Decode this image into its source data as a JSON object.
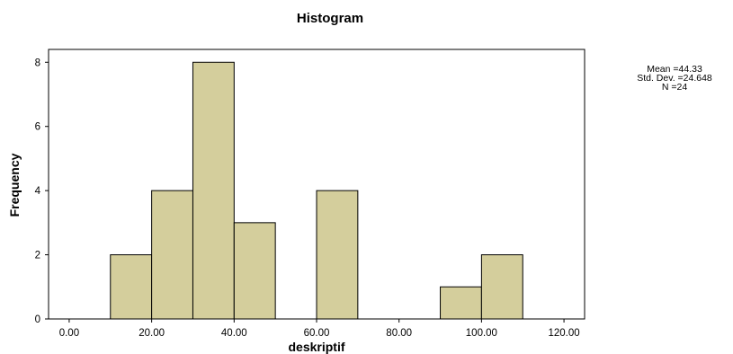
{
  "chart_data": {
    "type": "bar",
    "title": "Histogram",
    "xlabel": "deskriptif",
    "ylabel": "Frequency",
    "xlim": [
      -5,
      125
    ],
    "ylim": [
      0,
      8.4
    ],
    "x_ticks": [
      "0.00",
      "20.00",
      "40.00",
      "60.00",
      "80.00",
      "100.00",
      "120.00"
    ],
    "x_tick_values": [
      0,
      20,
      40,
      60,
      80,
      100,
      120
    ],
    "y_ticks": [
      "0",
      "2",
      "4",
      "6",
      "8"
    ],
    "y_tick_values": [
      0,
      2,
      4,
      6,
      8
    ],
    "bins": [
      {
        "start": 10,
        "end": 20,
        "count": 2
      },
      {
        "start": 20,
        "end": 30,
        "count": 4
      },
      {
        "start": 30,
        "end": 40,
        "count": 8
      },
      {
        "start": 40,
        "end": 50,
        "count": 3
      },
      {
        "start": 60,
        "end": 70,
        "count": 4
      },
      {
        "start": 90,
        "end": 100,
        "count": 1
      },
      {
        "start": 100,
        "end": 110,
        "count": 2
      }
    ],
    "bar_color": "#d4ce9c",
    "bar_edge_color": "#000000",
    "grid": false,
    "legend_position": "right",
    "stats": [
      "Mean =44.33",
      "Std. Dev. =24.648",
      "N =24"
    ]
  }
}
